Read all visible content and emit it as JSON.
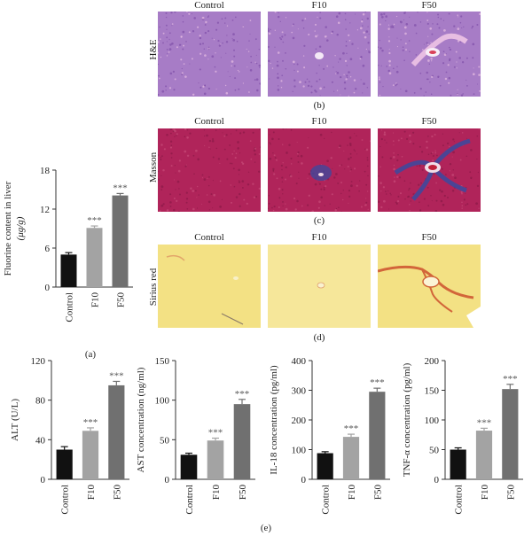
{
  "histology": {
    "groups": [
      "Control",
      "F10",
      "F50"
    ],
    "rows": [
      {
        "stain": "H&E",
        "panel": "(b)"
      },
      {
        "stain": "Masson",
        "panel": "(c)"
      },
      {
        "stain": "Sirius red",
        "panel": "(d)"
      }
    ],
    "colors": {
      "he_base": "#a77cc6",
      "he_dark": "#7f4fa8",
      "he_pink": "#e7bde2",
      "masson_base": "#b0245a",
      "masson_dark": "#8c1a47",
      "masson_blue": "#3a4aa0",
      "sirius_base": "#f3e184",
      "sirius_red": "#d2663a"
    }
  },
  "charts": {
    "bar_colors": [
      "#111111",
      "#a3a3a3",
      "#707070"
    ],
    "significance": "***",
    "panel_a": "(a)",
    "panel_e": "(e)"
  },
  "chart_data": [
    {
      "id": "a",
      "type": "bar",
      "categories": [
        "Control",
        "F10",
        "F50"
      ],
      "values": [
        5.0,
        9.1,
        14.1
      ],
      "errors": [
        0.3,
        0.3,
        0.3
      ],
      "ylabel_line1": "Fluorine content in liver",
      "ylabel_line2": "(μg/g)",
      "ylim": [
        0,
        18
      ],
      "yticks": [
        0,
        6,
        12,
        18
      ],
      "annotations": [
        "",
        "***",
        "***"
      ]
    },
    {
      "id": "alt",
      "type": "bar",
      "categories": [
        "Control",
        "F10",
        "F50"
      ],
      "values": [
        30,
        49,
        95
      ],
      "errors": [
        3,
        3,
        4
      ],
      "ylabel_line1": "ALT (U/L)",
      "ylim": [
        0,
        120
      ],
      "yticks": [
        0,
        40,
        80,
        120
      ],
      "annotations": [
        "",
        "***",
        "***"
      ]
    },
    {
      "id": "ast",
      "type": "bar",
      "categories": [
        "Control",
        "F10",
        "F50"
      ],
      "values": [
        31,
        49,
        95
      ],
      "errors": [
        2,
        3,
        6
      ],
      "ylabel_line1": "AST concentration (ng/ml)",
      "ylim": [
        0,
        150
      ],
      "yticks": [
        0,
        50,
        100,
        150
      ],
      "annotations": [
        "",
        "***",
        "***"
      ]
    },
    {
      "id": "il18",
      "type": "bar",
      "categories": [
        "Control",
        "F10",
        "F50"
      ],
      "values": [
        88,
        143,
        295
      ],
      "errors": [
        5,
        9,
        12
      ],
      "ylabel_line1": "IL-18 concentration (pg/ml)",
      "ylim": [
        0,
        400
      ],
      "yticks": [
        0,
        100,
        200,
        300,
        400
      ],
      "annotations": [
        "",
        "***",
        "***"
      ]
    },
    {
      "id": "tnf",
      "type": "bar",
      "categories": [
        "Control",
        "F10",
        "F50"
      ],
      "values": [
        50,
        82,
        152
      ],
      "errors": [
        3,
        4,
        8
      ],
      "ylabel_line1": "TNF-α concentration (pg/ml)",
      "ylim": [
        0,
        200
      ],
      "yticks": [
        0,
        50,
        100,
        150,
        200
      ],
      "annotations": [
        "",
        "***",
        "***"
      ]
    }
  ]
}
